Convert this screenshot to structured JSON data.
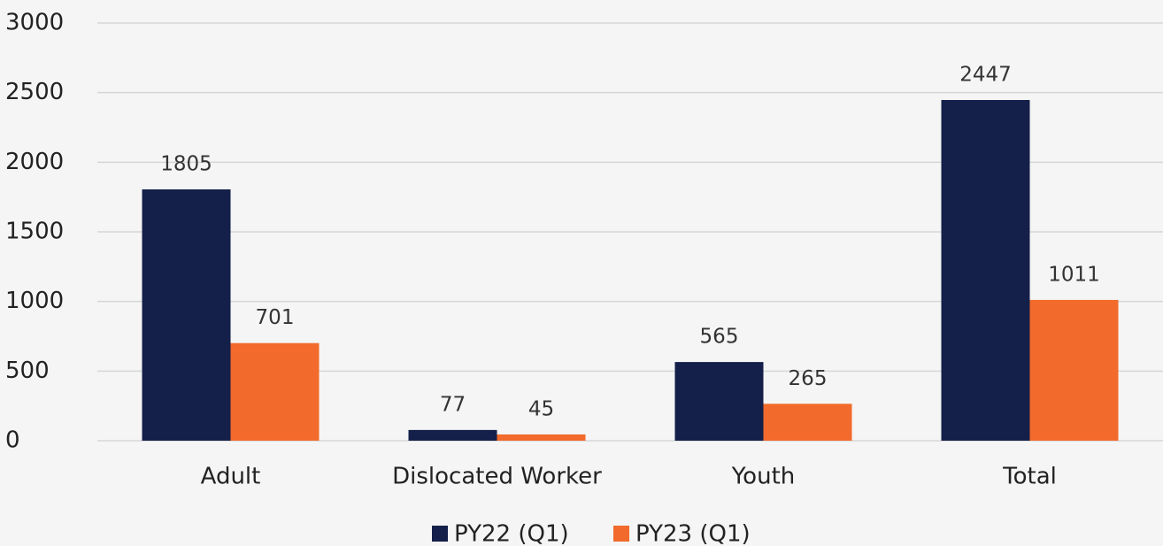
{
  "chart_data": {
    "type": "bar",
    "categories": [
      "Adult",
      "Dislocated Worker",
      "Youth",
      "Total"
    ],
    "series": [
      {
        "name": "PY22 (Q1)",
        "color": "#14204a",
        "values": [
          1805,
          77,
          565,
          2447
        ]
      },
      {
        "name": "PY23 (Q1)",
        "color": "#f26a2c",
        "values": [
          701,
          45,
          265,
          1011
        ]
      }
    ],
    "ylim": [
      0,
      3000
    ],
    "yticks": [
      0,
      500,
      1000,
      1500,
      2000,
      2500,
      3000
    ],
    "grid": true,
    "legend": "bottom"
  }
}
